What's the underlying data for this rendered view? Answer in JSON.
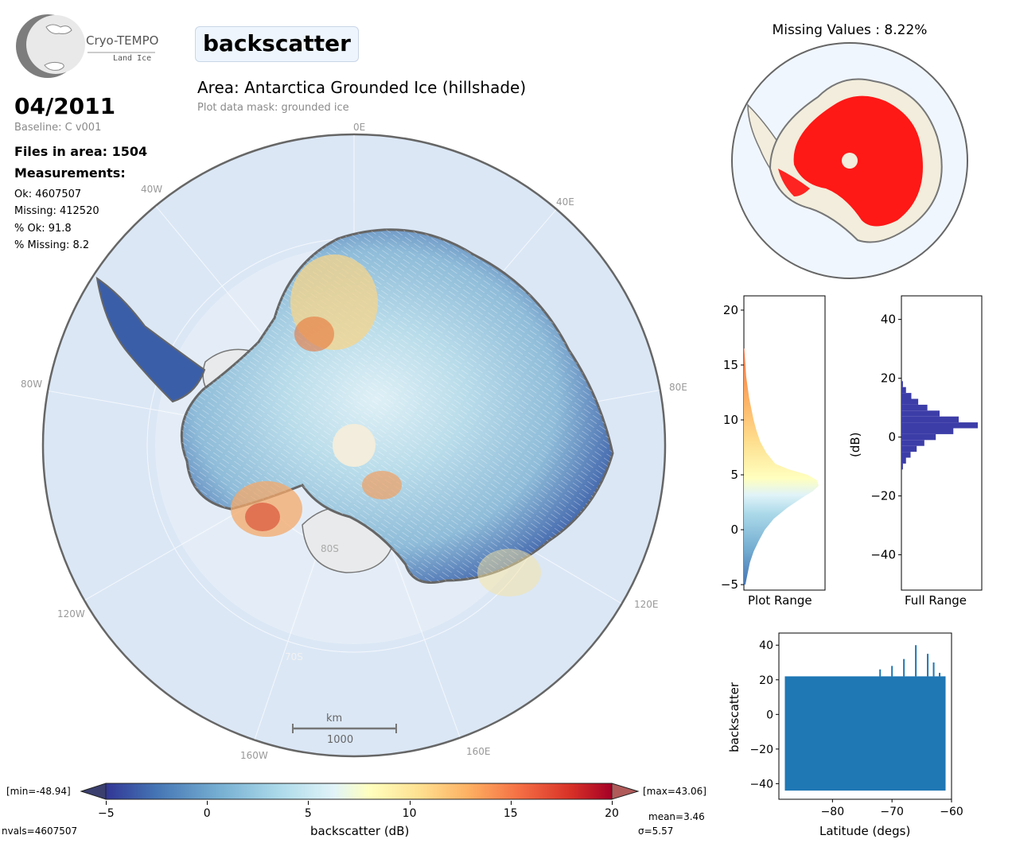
{
  "logo": {
    "title": "Cryo-TEMPO",
    "subtitle": "Land Ice"
  },
  "header": {
    "variable": "backscatter",
    "area_title": "Area: Antarctica Grounded Ice (hillshade)",
    "mask_note": "Plot data mask: grounded ice"
  },
  "info": {
    "date": "04/2011",
    "baseline": "Baseline: C v001",
    "files": "Files in area: 1504",
    "measurements_heading": "Measurements:",
    "ok": "Ok: 4607507",
    "missing": "Missing: 412520",
    "pct_ok": "% Ok: 91.8",
    "pct_missing": "% Missing: 8.2"
  },
  "map": {
    "lon_labels": [
      "0E",
      "40E",
      "80E",
      "120E",
      "160E",
      "160W",
      "120W",
      "80W",
      "40W"
    ],
    "lat_labels": [
      "80S",
      "70S"
    ],
    "scalebar_unit": "km",
    "scalebar_value": "1000"
  },
  "colorbar": {
    "min_label": "[min=-48.94]",
    "max_label": "[max=43.06]",
    "ticks": [
      "−5",
      "0",
      "5",
      "10",
      "15",
      "20"
    ],
    "label": "backscatter (dB)",
    "nvals": "nvals=4607507",
    "mean": "mean=3.46",
    "sigma": "σ=5.57"
  },
  "missing_map": {
    "title": "Missing Values : 8.22%"
  },
  "colors": {
    "missing": "#ff0000",
    "ocean": "#dbe7f5",
    "ice_bg": "#f2eddc",
    "full_hist": "#3d3da8",
    "scatter": "#1f77b4"
  },
  "chart_data": [
    {
      "type": "bar",
      "title": "",
      "xlabel": "Plot Range",
      "ylabel": "",
      "ylim": [
        -5.5,
        21.3
      ],
      "orientation": "horizontal",
      "yticks": [
        "−5",
        "0",
        "5",
        "10",
        "15",
        "20"
      ],
      "bins": [
        -5,
        -4,
        -3,
        -2,
        -1,
        0,
        1,
        2,
        3,
        3.5,
        4,
        4.5,
        5,
        5.5,
        6,
        7,
        8,
        9,
        10,
        11,
        12,
        13,
        14,
        15,
        16,
        16.5
      ],
      "values": [
        0.02,
        0.05,
        0.08,
        0.13,
        0.2,
        0.28,
        0.4,
        0.58,
        0.8,
        0.92,
        1.0,
        0.98,
        0.85,
        0.6,
        0.42,
        0.3,
        0.22,
        0.17,
        0.13,
        0.1,
        0.07,
        0.05,
        0.03,
        0.02,
        0.01,
        0.005
      ]
    },
    {
      "type": "bar",
      "title": "",
      "xlabel": "Full Range",
      "ylabel": "(dB)",
      "ylim": [
        -52,
        48
      ],
      "orientation": "horizontal",
      "yticks": [
        "40",
        "20",
        "0",
        "−20",
        "−40"
      ],
      "bins": [
        -11,
        -9,
        -7,
        -5,
        -3,
        -1,
        1,
        3,
        5,
        7,
        9,
        11,
        13,
        15,
        17
      ],
      "values": [
        0.02,
        0.06,
        0.12,
        0.2,
        0.3,
        0.45,
        0.68,
        1.0,
        0.75,
        0.5,
        0.34,
        0.22,
        0.13,
        0.06,
        0.02
      ]
    },
    {
      "type": "scatter",
      "title": "",
      "xlabel": "Latitude (degs)",
      "ylabel": "backscatter",
      "xlim": [
        -89,
        -60
      ],
      "ylim": [
        -49,
        47
      ],
      "xticks": [
        "−80",
        "−70",
        "−60"
      ],
      "yticks": [
        "40",
        "20",
        "0",
        "−20",
        "−40"
      ],
      "band": {
        "lat_min": -88,
        "lat_max": -61,
        "upper_edge_db": 22,
        "lower_edge_db": -44
      }
    }
  ]
}
